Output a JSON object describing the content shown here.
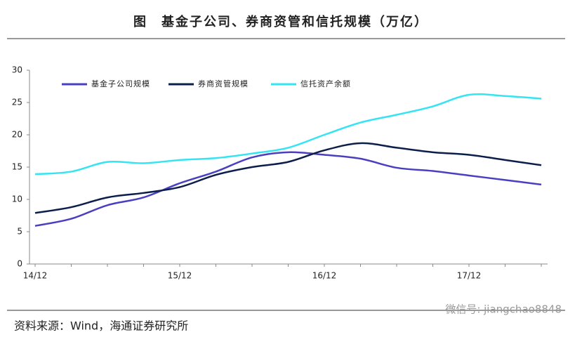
{
  "chart_data": {
    "type": "line",
    "title": "图　基金子公司、券商资管和信托规模（万亿）",
    "source": "资料来源：Wind，海通证券研究所",
    "watermark": "微信号: jiangchao8848",
    "categories": [
      "14/12",
      null,
      null,
      null,
      "15/12",
      null,
      null,
      null,
      "16/12",
      null,
      null,
      null,
      "17/12",
      null,
      null
    ],
    "series": [
      {
        "name": "基金子公司规模",
        "color": "#4a3fc0",
        "values": [
          5.9,
          7.0,
          9.1,
          10.3,
          12.5,
          14.3,
          16.5,
          17.3,
          16.9,
          16.3,
          14.9,
          14.4,
          13.7,
          13.0,
          12.3
        ]
      },
      {
        "name": "券商资管规模",
        "color": "#0c1f4a",
        "values": [
          7.9,
          8.8,
          10.3,
          11.0,
          11.9,
          13.8,
          15.0,
          15.8,
          17.6,
          18.7,
          18.0,
          17.3,
          16.9,
          16.1,
          15.3
        ]
      },
      {
        "name": "信托资产余额",
        "color": "#33e4f2",
        "values": [
          13.9,
          14.3,
          15.8,
          15.6,
          16.1,
          16.4,
          17.1,
          18.0,
          20.0,
          21.9,
          23.1,
          24.4,
          26.2,
          26.0,
          25.6
        ]
      }
    ],
    "ylim": [
      0,
      30
    ],
    "yticks": [
      0,
      5,
      10,
      15,
      20,
      25,
      30
    ],
    "legend": "top-left",
    "smooth": true
  }
}
